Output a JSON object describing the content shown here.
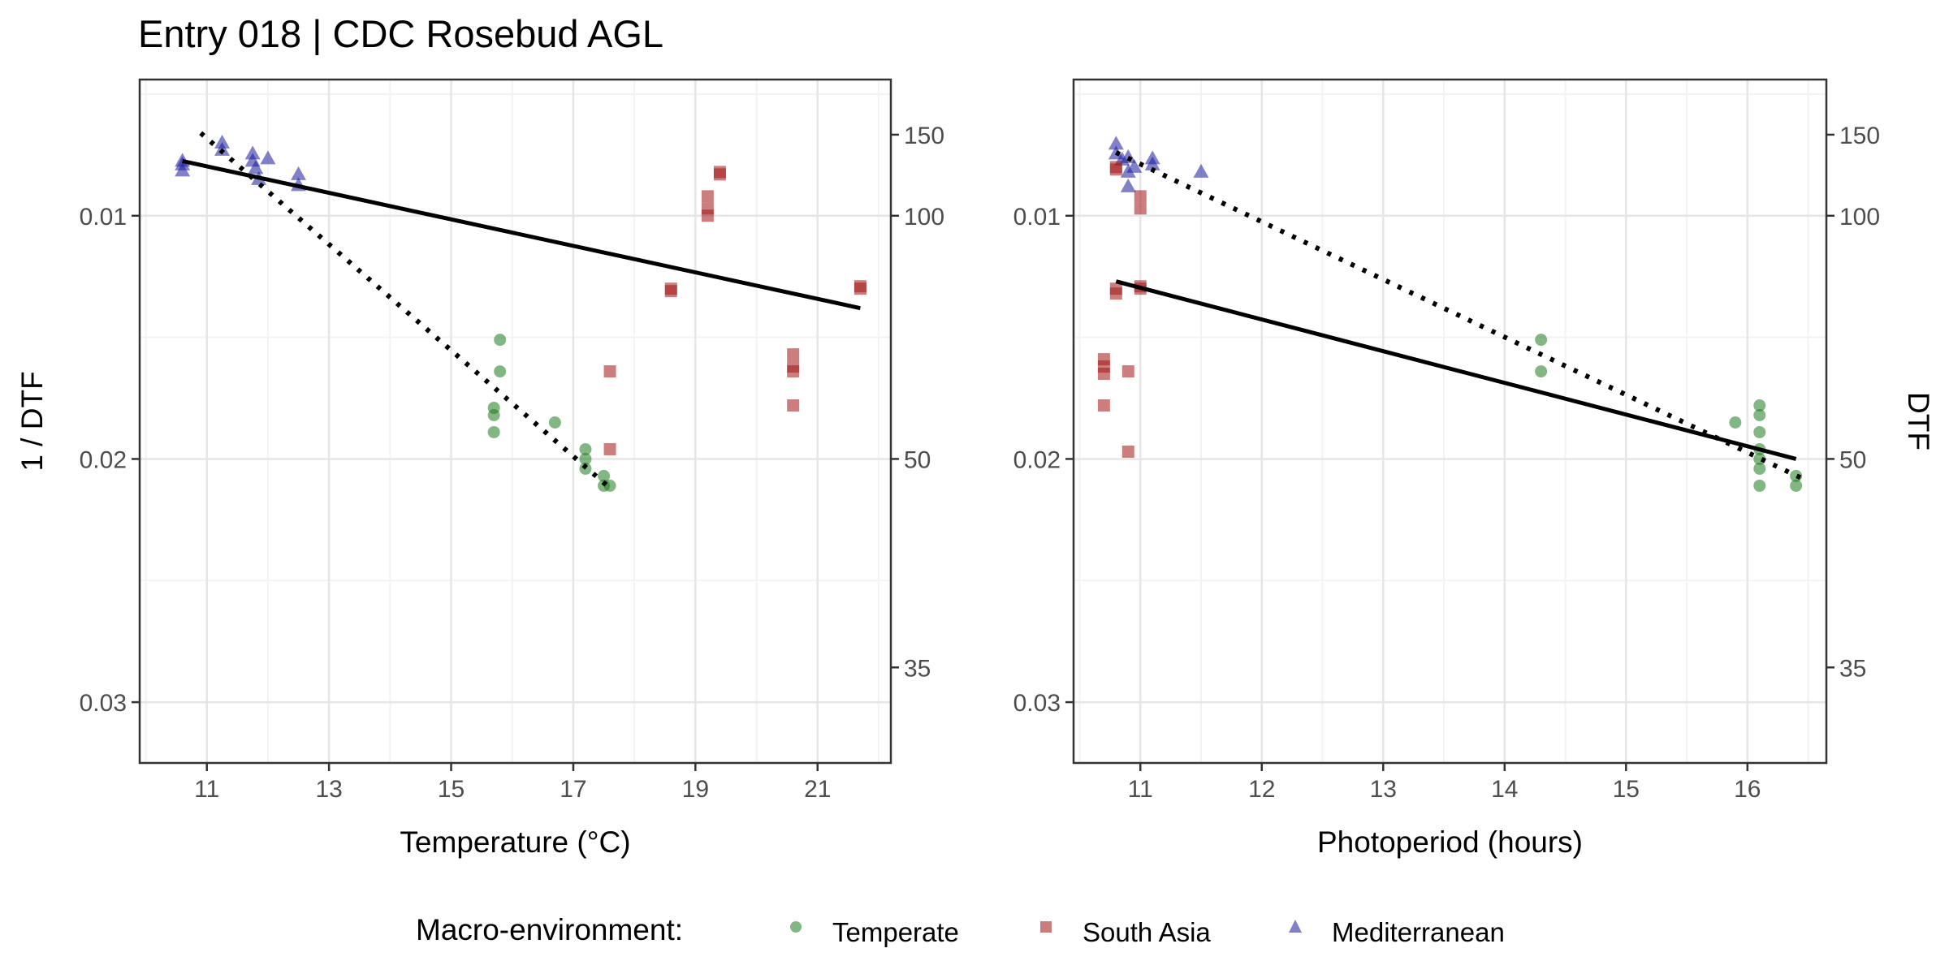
{
  "title": "Entry 018 | CDC Rosebud AGL",
  "colors": {
    "temperate": "#1b7a1b",
    "south_asia": "#a31414",
    "mediterranean": "#1a1a9e",
    "grid_major": "#e6e6e6",
    "grid_minor": "#f3f3f3"
  },
  "legend": {
    "title": "Macro-environment:",
    "items": [
      {
        "label": "Temperate",
        "shape": "circle",
        "color": "#1b7a1b"
      },
      {
        "label": "South Asia",
        "shape": "square",
        "color": "#a31414"
      },
      {
        "label": "Mediterranean",
        "shape": "triangle",
        "color": "#1a1a9e"
      }
    ]
  },
  "chart_data": [
    {
      "type": "scatter",
      "xlabel": "Temperature (°C)",
      "ylabel": "1 / DTF",
      "y2label": "",
      "xlim": [
        9.9,
        22.2
      ],
      "ylim": [
        0.0044,
        0.0325
      ],
      "y_reversed": true,
      "xticks": [
        11,
        13,
        15,
        17,
        19,
        21
      ],
      "yticks": [
        0.01,
        0.02,
        0.03
      ],
      "ytick_labels": [
        "0.01",
        "0.02",
        "0.03"
      ],
      "y2ticks": [
        150,
        100,
        50,
        35
      ],
      "grid": true,
      "points": [
        {
          "group": "mediterranean",
          "x": 10.6,
          "y": 0.00775
        },
        {
          "group": "mediterranean",
          "x": 10.6,
          "y": 0.0079
        },
        {
          "group": "mediterranean",
          "x": 10.6,
          "y": 0.00815
        },
        {
          "group": "mediterranean",
          "x": 11.25,
          "y": 0.007
        },
        {
          "group": "mediterranean",
          "x": 11.25,
          "y": 0.0073
        },
        {
          "group": "mediterranean",
          "x": 11.75,
          "y": 0.00745
        },
        {
          "group": "mediterranean",
          "x": 11.75,
          "y": 0.00775
        },
        {
          "group": "mediterranean",
          "x": 11.8,
          "y": 0.00805
        },
        {
          "group": "mediterranean",
          "x": 11.85,
          "y": 0.0085
        },
        {
          "group": "mediterranean",
          "x": 12.0,
          "y": 0.00765
        },
        {
          "group": "mediterranean",
          "x": 12.5,
          "y": 0.0083
        },
        {
          "group": "mediterranean",
          "x": 12.5,
          "y": 0.00875
        },
        {
          "group": "south_asia",
          "x": 18.6,
          "y": 0.013
        },
        {
          "group": "south_asia",
          "x": 18.6,
          "y": 0.0131
        },
        {
          "group": "south_asia",
          "x": 19.2,
          "y": 0.0092
        },
        {
          "group": "south_asia",
          "x": 19.2,
          "y": 0.0097
        },
        {
          "group": "south_asia",
          "x": 19.2,
          "y": 0.01
        },
        {
          "group": "south_asia",
          "x": 19.4,
          "y": 0.0082
        },
        {
          "group": "south_asia",
          "x": 19.4,
          "y": 0.0083
        },
        {
          "group": "south_asia",
          "x": 17.6,
          "y": 0.0164
        },
        {
          "group": "south_asia",
          "x": 17.6,
          "y": 0.0196
        },
        {
          "group": "south_asia",
          "x": 20.6,
          "y": 0.0157
        },
        {
          "group": "south_asia",
          "x": 20.6,
          "y": 0.0162
        },
        {
          "group": "south_asia",
          "x": 20.6,
          "y": 0.0164
        },
        {
          "group": "south_asia",
          "x": 20.6,
          "y": 0.0178
        },
        {
          "group": "south_asia",
          "x": 21.7,
          "y": 0.0129
        },
        {
          "group": "south_asia",
          "x": 21.7,
          "y": 0.013
        },
        {
          "group": "temperate",
          "x": 15.8,
          "y": 0.0151
        },
        {
          "group": "temperate",
          "x": 15.8,
          "y": 0.0164
        },
        {
          "group": "temperate",
          "x": 15.7,
          "y": 0.0179
        },
        {
          "group": "temperate",
          "x": 15.7,
          "y": 0.0182
        },
        {
          "group": "temperate",
          "x": 15.7,
          "y": 0.0189
        },
        {
          "group": "temperate",
          "x": 16.7,
          "y": 0.0185
        },
        {
          "group": "temperate",
          "x": 17.2,
          "y": 0.0196
        },
        {
          "group": "temperate",
          "x": 17.2,
          "y": 0.02
        },
        {
          "group": "temperate",
          "x": 17.2,
          "y": 0.0204
        },
        {
          "group": "temperate",
          "x": 17.5,
          "y": 0.0207
        },
        {
          "group": "temperate",
          "x": 17.5,
          "y": 0.0211
        },
        {
          "group": "temperate",
          "x": 17.6,
          "y": 0.0211
        }
      ],
      "lines": [
        {
          "style": "solid",
          "x": [
            10.6,
            21.7
          ],
          "y": [
            0.00775,
            0.0138
          ]
        },
        {
          "style": "dotted",
          "x": [
            10.9,
            17.6
          ],
          "y": [
            0.0066,
            0.0212
          ]
        }
      ]
    },
    {
      "type": "scatter",
      "xlabel": "Photoperiod (hours)",
      "ylabel": "",
      "y2label": "DTF",
      "xlim": [
        10.45,
        16.65
      ],
      "ylim": [
        0.0044,
        0.0325
      ],
      "y_reversed": true,
      "xticks": [
        11,
        12,
        13,
        14,
        15,
        16
      ],
      "yticks": [
        0.01,
        0.02,
        0.03
      ],
      "ytick_labels": [
        "0.01",
        "0.02",
        "0.03"
      ],
      "y2ticks": [
        150,
        100,
        50,
        35
      ],
      "grid": true,
      "points": [
        {
          "group": "mediterranean",
          "x": 10.8,
          "y": 0.00705
        },
        {
          "group": "mediterranean",
          "x": 10.8,
          "y": 0.00745
        },
        {
          "group": "mediterranean",
          "x": 10.85,
          "y": 0.0077
        },
        {
          "group": "mediterranean",
          "x": 10.9,
          "y": 0.0076
        },
        {
          "group": "mediterranean",
          "x": 10.9,
          "y": 0.0082
        },
        {
          "group": "mediterranean",
          "x": 10.9,
          "y": 0.0088
        },
        {
          "group": "mediterranean",
          "x": 10.95,
          "y": 0.008
        },
        {
          "group": "mediterranean",
          "x": 11.1,
          "y": 0.00765
        },
        {
          "group": "mediterranean",
          "x": 11.1,
          "y": 0.0079
        },
        {
          "group": "mediterranean",
          "x": 11.5,
          "y": 0.0082
        },
        {
          "group": "south_asia",
          "x": 10.8,
          "y": 0.008
        },
        {
          "group": "south_asia",
          "x": 10.8,
          "y": 0.0081
        },
        {
          "group": "south_asia",
          "x": 10.8,
          "y": 0.013
        },
        {
          "group": "south_asia",
          "x": 10.8,
          "y": 0.0132
        },
        {
          "group": "south_asia",
          "x": 11.0,
          "y": 0.0092
        },
        {
          "group": "south_asia",
          "x": 11.0,
          "y": 0.0097
        },
        {
          "group": "south_asia",
          "x": 11.0,
          "y": 0.0129
        },
        {
          "group": "south_asia",
          "x": 11.0,
          "y": 0.013
        },
        {
          "group": "south_asia",
          "x": 10.7,
          "y": 0.0159
        },
        {
          "group": "south_asia",
          "x": 10.7,
          "y": 0.0162
        },
        {
          "group": "south_asia",
          "x": 10.7,
          "y": 0.0165
        },
        {
          "group": "south_asia",
          "x": 10.7,
          "y": 0.0178
        },
        {
          "group": "south_asia",
          "x": 10.9,
          "y": 0.0164
        },
        {
          "group": "south_asia",
          "x": 10.9,
          "y": 0.0197
        },
        {
          "group": "temperate",
          "x": 14.3,
          "y": 0.0151
        },
        {
          "group": "temperate",
          "x": 14.3,
          "y": 0.0164
        },
        {
          "group": "temperate",
          "x": 15.9,
          "y": 0.0185
        },
        {
          "group": "temperate",
          "x": 16.1,
          "y": 0.0178
        },
        {
          "group": "temperate",
          "x": 16.1,
          "y": 0.0182
        },
        {
          "group": "temperate",
          "x": 16.1,
          "y": 0.0189
        },
        {
          "group": "temperate",
          "x": 16.1,
          "y": 0.0196
        },
        {
          "group": "temperate",
          "x": 16.1,
          "y": 0.02
        },
        {
          "group": "temperate",
          "x": 16.1,
          "y": 0.0204
        },
        {
          "group": "temperate",
          "x": 16.1,
          "y": 0.0211
        },
        {
          "group": "temperate",
          "x": 16.4,
          "y": 0.0207
        },
        {
          "group": "temperate",
          "x": 16.4,
          "y": 0.0211
        }
      ],
      "lines": [
        {
          "style": "solid",
          "x": [
            10.8,
            16.4
          ],
          "y": [
            0.0127,
            0.02
          ]
        },
        {
          "style": "dotted",
          "x": [
            10.8,
            16.45
          ],
          "y": [
            0.0074,
            0.0208
          ]
        }
      ]
    }
  ]
}
